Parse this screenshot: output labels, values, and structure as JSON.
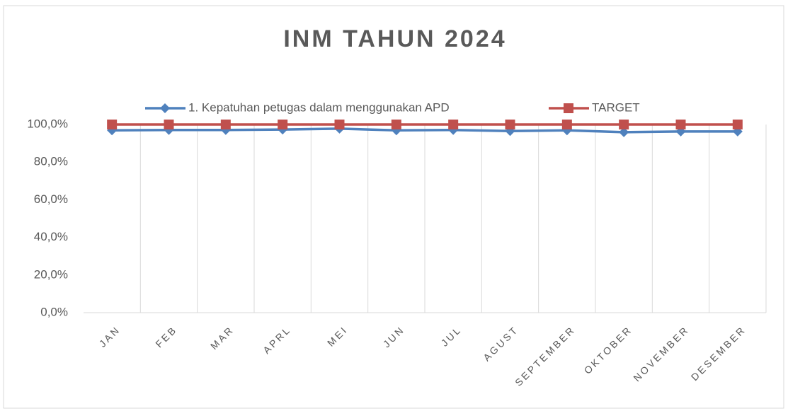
{
  "chart_data": {
    "type": "line",
    "title": "INM TAHUN 2024",
    "categories": [
      "JAN",
      "FEB",
      "MAR",
      "APRL",
      "MEI",
      "JUN",
      "JUL",
      "AGUST",
      "SEPTEMBER",
      "OKTOBER",
      "NOVEMBER",
      "DESEMBER"
    ],
    "series": [
      {
        "name": "1. Kepatuhan petugas dalam menggunakan APD",
        "color": "#4f81bd",
        "marker": "diamond",
        "values": [
          96.9,
          97.1,
          97.1,
          97.3,
          97.8,
          96.9,
          97.1,
          96.5,
          96.9,
          95.9,
          96.3,
          96.3
        ]
      },
      {
        "name": "TARGET",
        "color": "#c0504d",
        "marker": "square",
        "values": [
          100,
          100,
          100,
          100,
          100,
          100,
          100,
          100,
          100,
          100,
          100,
          100
        ]
      }
    ],
    "ylim": [
      0,
      100
    ],
    "yticks": [
      {
        "value": 0,
        "label": "0,0%"
      },
      {
        "value": 20,
        "label": "20,0%"
      },
      {
        "value": 40,
        "label": "40,0%"
      },
      {
        "value": 60,
        "label": "60,0%"
      },
      {
        "value": 80,
        "label": "80,0%"
      },
      {
        "value": 100,
        "label": "100,0%"
      }
    ],
    "grid": "x",
    "legend": "top"
  }
}
